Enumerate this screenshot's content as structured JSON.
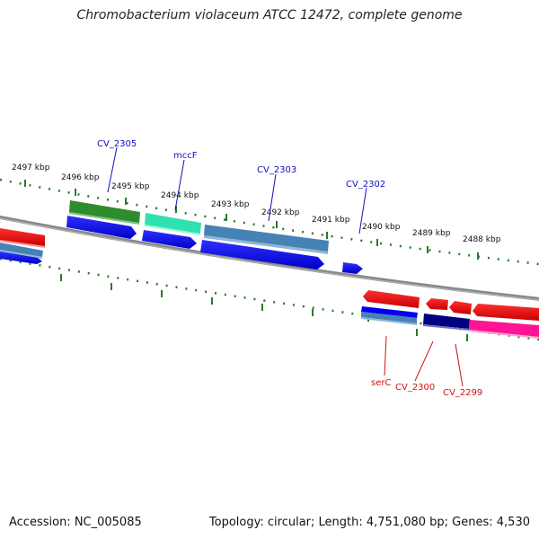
{
  "title": "Chromobacterium violaceum ATCC 12472, complete genome",
  "footer": {
    "accession": "Accession: NC_005085",
    "stats": "Topology: circular; Length: 4,751,080 bp; Genes: 4,530"
  },
  "ticks": [
    "2497 kbp",
    "2496 kbp",
    "2495 kbp",
    "2494 kbp",
    "2493 kbp",
    "2492 kbp",
    "2491 kbp",
    "2490 kbp",
    "2489 kbp",
    "2488 kbp"
  ],
  "gene_labels_forward": [
    "CV_2305",
    "mccF",
    "CV_2303",
    "CV_2302"
  ],
  "gene_labels_reverse": [
    "serC",
    "CV_2300",
    "CV_2299"
  ],
  "colors": {
    "backbone": "#888888",
    "tick": "#2a7a2a",
    "cds_blue": "#0000ee",
    "cds_red": "#ee0000",
    "green_feature": "#2e8b2e",
    "teal_feature": "#2fe0b0",
    "steel_feature": "#4682b4",
    "navy_feature": "#000080",
    "pink_feature": "#ff1493",
    "label_forward": "#1010c0",
    "label_reverse": "#d01010"
  }
}
